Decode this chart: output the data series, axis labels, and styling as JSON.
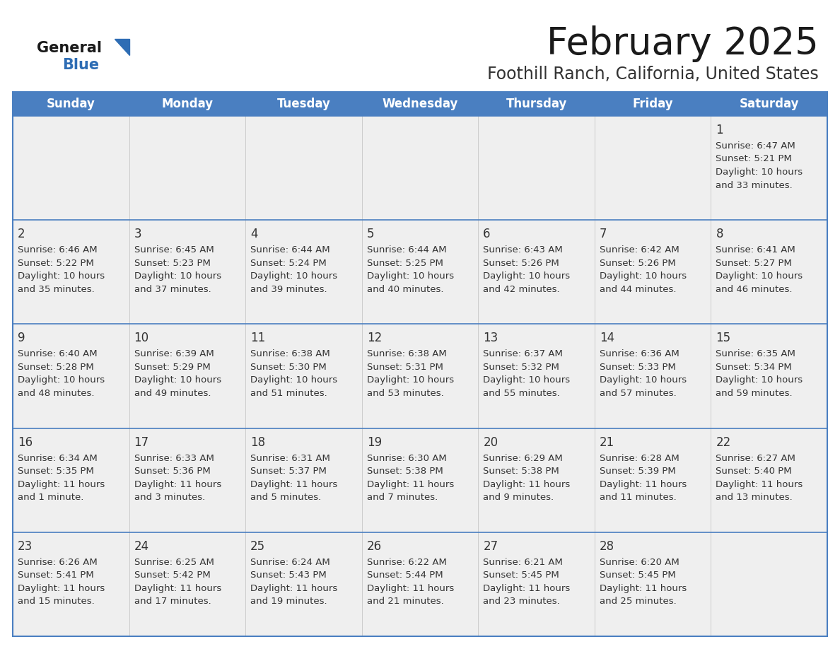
{
  "title": "February 2025",
  "subtitle": "Foothill Ranch, California, United States",
  "header_bg": "#4A7FC1",
  "header_text_color": "#FFFFFF",
  "day_names": [
    "Sunday",
    "Monday",
    "Tuesday",
    "Wednesday",
    "Thursday",
    "Friday",
    "Saturday"
  ],
  "row_bg": "#EFEFEF",
  "cell_text_color": "#333333",
  "border_color": "#4A7FC1",
  "grid_color": "#CCCCCC",
  "title_color": "#1a1a1a",
  "subtitle_color": "#333333",
  "logo_general_color": "#1a1a1a",
  "logo_blue_color": "#2E6DB4",
  "weeks": [
    [
      {
        "day": null,
        "text": ""
      },
      {
        "day": null,
        "text": ""
      },
      {
        "day": null,
        "text": ""
      },
      {
        "day": null,
        "text": ""
      },
      {
        "day": null,
        "text": ""
      },
      {
        "day": null,
        "text": ""
      },
      {
        "day": 1,
        "text": "Sunrise: 6:47 AM\nSunset: 5:21 PM\nDaylight: 10 hours\nand 33 minutes."
      }
    ],
    [
      {
        "day": 2,
        "text": "Sunrise: 6:46 AM\nSunset: 5:22 PM\nDaylight: 10 hours\nand 35 minutes."
      },
      {
        "day": 3,
        "text": "Sunrise: 6:45 AM\nSunset: 5:23 PM\nDaylight: 10 hours\nand 37 minutes."
      },
      {
        "day": 4,
        "text": "Sunrise: 6:44 AM\nSunset: 5:24 PM\nDaylight: 10 hours\nand 39 minutes."
      },
      {
        "day": 5,
        "text": "Sunrise: 6:44 AM\nSunset: 5:25 PM\nDaylight: 10 hours\nand 40 minutes."
      },
      {
        "day": 6,
        "text": "Sunrise: 6:43 AM\nSunset: 5:26 PM\nDaylight: 10 hours\nand 42 minutes."
      },
      {
        "day": 7,
        "text": "Sunrise: 6:42 AM\nSunset: 5:26 PM\nDaylight: 10 hours\nand 44 minutes."
      },
      {
        "day": 8,
        "text": "Sunrise: 6:41 AM\nSunset: 5:27 PM\nDaylight: 10 hours\nand 46 minutes."
      }
    ],
    [
      {
        "day": 9,
        "text": "Sunrise: 6:40 AM\nSunset: 5:28 PM\nDaylight: 10 hours\nand 48 minutes."
      },
      {
        "day": 10,
        "text": "Sunrise: 6:39 AM\nSunset: 5:29 PM\nDaylight: 10 hours\nand 49 minutes."
      },
      {
        "day": 11,
        "text": "Sunrise: 6:38 AM\nSunset: 5:30 PM\nDaylight: 10 hours\nand 51 minutes."
      },
      {
        "day": 12,
        "text": "Sunrise: 6:38 AM\nSunset: 5:31 PM\nDaylight: 10 hours\nand 53 minutes."
      },
      {
        "day": 13,
        "text": "Sunrise: 6:37 AM\nSunset: 5:32 PM\nDaylight: 10 hours\nand 55 minutes."
      },
      {
        "day": 14,
        "text": "Sunrise: 6:36 AM\nSunset: 5:33 PM\nDaylight: 10 hours\nand 57 minutes."
      },
      {
        "day": 15,
        "text": "Sunrise: 6:35 AM\nSunset: 5:34 PM\nDaylight: 10 hours\nand 59 minutes."
      }
    ],
    [
      {
        "day": 16,
        "text": "Sunrise: 6:34 AM\nSunset: 5:35 PM\nDaylight: 11 hours\nand 1 minute."
      },
      {
        "day": 17,
        "text": "Sunrise: 6:33 AM\nSunset: 5:36 PM\nDaylight: 11 hours\nand 3 minutes."
      },
      {
        "day": 18,
        "text": "Sunrise: 6:31 AM\nSunset: 5:37 PM\nDaylight: 11 hours\nand 5 minutes."
      },
      {
        "day": 19,
        "text": "Sunrise: 6:30 AM\nSunset: 5:38 PM\nDaylight: 11 hours\nand 7 minutes."
      },
      {
        "day": 20,
        "text": "Sunrise: 6:29 AM\nSunset: 5:38 PM\nDaylight: 11 hours\nand 9 minutes."
      },
      {
        "day": 21,
        "text": "Sunrise: 6:28 AM\nSunset: 5:39 PM\nDaylight: 11 hours\nand 11 minutes."
      },
      {
        "day": 22,
        "text": "Sunrise: 6:27 AM\nSunset: 5:40 PM\nDaylight: 11 hours\nand 13 minutes."
      }
    ],
    [
      {
        "day": 23,
        "text": "Sunrise: 6:26 AM\nSunset: 5:41 PM\nDaylight: 11 hours\nand 15 minutes."
      },
      {
        "day": 24,
        "text": "Sunrise: 6:25 AM\nSunset: 5:42 PM\nDaylight: 11 hours\nand 17 minutes."
      },
      {
        "day": 25,
        "text": "Sunrise: 6:24 AM\nSunset: 5:43 PM\nDaylight: 11 hours\nand 19 minutes."
      },
      {
        "day": 26,
        "text": "Sunrise: 6:22 AM\nSunset: 5:44 PM\nDaylight: 11 hours\nand 21 minutes."
      },
      {
        "day": 27,
        "text": "Sunrise: 6:21 AM\nSunset: 5:45 PM\nDaylight: 11 hours\nand 23 minutes."
      },
      {
        "day": 28,
        "text": "Sunrise: 6:20 AM\nSunset: 5:45 PM\nDaylight: 11 hours\nand 25 minutes."
      },
      {
        "day": null,
        "text": ""
      }
    ]
  ]
}
